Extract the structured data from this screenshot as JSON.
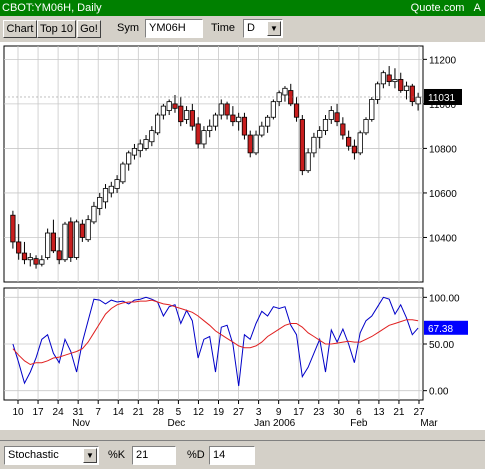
{
  "window": {
    "title": "CBOT:YM06H, Daily",
    "brand": "Quote.com",
    "corner": "A"
  },
  "toolbar": {
    "chart_label": "Chart",
    "top10_label": "Top 10",
    "go_label": "Go!",
    "sym_label": "Sym",
    "sym_value": "YM06H",
    "time_label": "Time",
    "time_value": "D"
  },
  "price_panel": {
    "yticks": [
      "11200",
      "11000",
      "10800",
      "10600",
      "10400"
    ],
    "last_price": "11031"
  },
  "stoch_panel": {
    "yticks": [
      "100.00",
      "50.00",
      "0.00"
    ],
    "last_value": "67.38"
  },
  "x_axis": {
    "day_ticks": [
      "10",
      "17",
      "24",
      "31",
      "7",
      "14",
      "21",
      "28",
      "5",
      "12",
      "19",
      "27",
      "3",
      "9",
      "17",
      "23",
      "30",
      "6",
      "13",
      "21",
      "27"
    ],
    "month_labels": [
      "Nov",
      "Dec",
      "Jan 2006",
      "Feb",
      "Mar"
    ]
  },
  "bottom": {
    "indicator": "Stochastic",
    "k_label": "%K",
    "k_value": "21",
    "d_label": "%D",
    "d_value": "14"
  },
  "colors": {
    "titlebar": "#008000",
    "up_candle": "#ffffff",
    "down_candle": "#c81e1e",
    "k_line": "#0000c8",
    "d_line": "#e02020",
    "stoch_badge": "#0000ff",
    "price_badge": "#000000"
  },
  "chart_data": [
    {
      "type": "candlestick",
      "title": "CBOT:YM06H, Daily",
      "ylim": [
        10200,
        11260
      ],
      "candles": [
        [
          10500,
          10520,
          10350,
          10380
        ],
        [
          10380,
          10460,
          10300,
          10330
        ],
        [
          10330,
          10380,
          10280,
          10300
        ],
        [
          10300,
          10330,
          10270,
          10310
        ],
        [
          10305,
          10320,
          10260,
          10280
        ],
        [
          10280,
          10320,
          10270,
          10300
        ],
        [
          10310,
          10440,
          10300,
          10420
        ],
        [
          10420,
          10480,
          10330,
          10340
        ],
        [
          10340,
          10400,
          10280,
          10300
        ],
        [
          10300,
          10470,
          10290,
          10460
        ],
        [
          10470,
          10490,
          10290,
          10310
        ],
        [
          10310,
          10480,
          10300,
          10470
        ],
        [
          10460,
          10480,
          10380,
          10400
        ],
        [
          10390,
          10500,
          10380,
          10480
        ],
        [
          10470,
          10560,
          10460,
          10540
        ],
        [
          10530,
          10600,
          10500,
          10580
        ],
        [
          10560,
          10640,
          10530,
          10620
        ],
        [
          10600,
          10650,
          10580,
          10630
        ],
        [
          10620,
          10680,
          10600,
          10660
        ],
        [
          10650,
          10740,
          10640,
          10730
        ],
        [
          10730,
          10790,
          10700,
          10780
        ],
        [
          10770,
          10820,
          10750,
          10800
        ],
        [
          10790,
          10840,
          10760,
          10820
        ],
        [
          10800,
          10860,
          10790,
          10840
        ],
        [
          10830,
          10900,
          10810,
          10880
        ],
        [
          10870,
          10960,
          10860,
          10950
        ],
        [
          10950,
          11000,
          10930,
          10990
        ],
        [
          10970,
          11020,
          10950,
          11010
        ],
        [
          11000,
          11040,
          10960,
          10980
        ],
        [
          10990,
          11030,
          10900,
          10920
        ],
        [
          10930,
          10990,
          10910,
          10970
        ],
        [
          10970,
          11000,
          10880,
          10900
        ],
        [
          10910,
          10940,
          10800,
          10820
        ],
        [
          10820,
          10900,
          10800,
          10880
        ],
        [
          10880,
          10930,
          10850,
          10900
        ],
        [
          10900,
          10960,
          10880,
          10950
        ],
        [
          10950,
          11020,
          10930,
          11000
        ],
        [
          11000,
          11010,
          10930,
          10950
        ],
        [
          10950,
          10990,
          10900,
          10920
        ],
        [
          10920,
          10960,
          10880,
          10940
        ],
        [
          10940,
          10960,
          10840,
          10860
        ],
        [
          10860,
          10880,
          10760,
          10780
        ],
        [
          10780,
          10880,
          10770,
          10860
        ],
        [
          10860,
          10920,
          10850,
          10900
        ],
        [
          10900,
          10950,
          10870,
          10940
        ],
        [
          10940,
          11020,
          10930,
          11010
        ],
        [
          11010,
          11060,
          10990,
          11050
        ],
        [
          11040,
          11080,
          11010,
          11070
        ],
        [
          11060,
          11090,
          10990,
          11000
        ],
        [
          11000,
          11030,
          10920,
          10940
        ],
        [
          10930,
          10950,
          10680,
          10700
        ],
        [
          10700,
          10800,
          10690,
          10780
        ],
        [
          10780,
          10870,
          10760,
          10850
        ],
        [
          10850,
          10900,
          10800,
          10880
        ],
        [
          10880,
          10950,
          10860,
          10930
        ],
        [
          10930,
          10990,
          10910,
          10970
        ],
        [
          10960,
          11000,
          10900,
          10920
        ],
        [
          10910,
          10940,
          10840,
          10860
        ],
        [
          10850,
          10880,
          10790,
          10810
        ],
        [
          10810,
          10840,
          10750,
          10780
        ],
        [
          10780,
          10880,
          10770,
          10870
        ],
        [
          10870,
          10940,
          10860,
          10930
        ],
        [
          10930,
          11030,
          10920,
          11020
        ],
        [
          11020,
          11100,
          11000,
          11090
        ],
        [
          11090,
          11150,
          11070,
          11140
        ],
        [
          11130,
          11170,
          11080,
          11100
        ],
        [
          11100,
          11160,
          11070,
          11110
        ],
        [
          11110,
          11140,
          11050,
          11060
        ],
        [
          11060,
          11100,
          11020,
          11080
        ],
        [
          11080,
          11090,
          10990,
          11010
        ],
        [
          11000,
          11050,
          10970,
          11030
        ]
      ]
    },
    {
      "type": "line",
      "title": "Stochastic",
      "ylim": [
        -10,
        110
      ],
      "series": [
        {
          "name": "%K",
          "values": [
            50,
            30,
            8,
            20,
            35,
            55,
            60,
            40,
            30,
            55,
            42,
            20,
            52,
            75,
            98,
            97,
            93,
            97,
            95,
            96,
            93,
            97,
            98,
            100,
            98,
            95,
            80,
            90,
            92,
            72,
            86,
            75,
            35,
            55,
            58,
            20,
            68,
            70,
            50,
            5,
            60,
            55,
            72,
            85,
            80,
            90,
            88,
            90,
            70,
            60,
            15,
            25,
            40,
            55,
            20,
            65,
            52,
            66,
            50,
            30,
            62,
            75,
            80,
            90,
            100,
            98,
            82,
            92,
            78,
            60,
            67
          ]
        },
        {
          "name": "%D",
          "values": [
            45,
            38,
            32,
            28,
            30,
            30,
            32,
            35,
            36,
            38,
            40,
            42,
            45,
            52,
            62,
            72,
            82,
            88,
            92,
            94,
            95,
            95,
            96,
            96,
            97,
            95,
            93,
            92,
            90,
            88,
            86,
            84,
            80,
            75,
            70,
            64,
            60,
            56,
            52,
            48,
            46,
            46,
            48,
            52,
            58,
            62,
            66,
            70,
            72,
            72,
            68,
            62,
            58,
            54,
            50,
            50,
            51,
            52,
            53,
            52,
            52,
            55,
            58,
            62,
            66,
            70,
            72,
            74,
            76,
            76,
            75
          ]
        }
      ]
    }
  ]
}
